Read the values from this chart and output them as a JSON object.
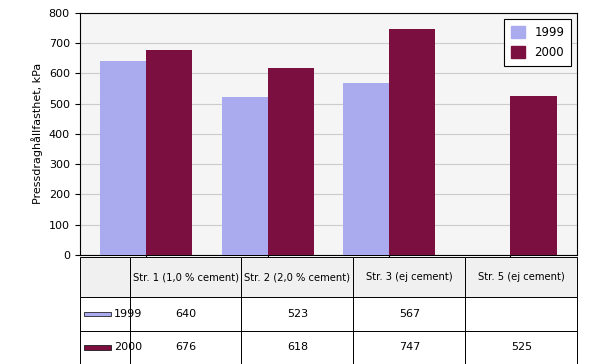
{
  "categories": [
    "Str. 1 (1,0 % cement)",
    "Str. 2 (2,0 % cement)",
    "Str. 3 (ej cement)",
    "Str. 5 (ej cement)"
  ],
  "values_1999": [
    640,
    523,
    567,
    null
  ],
  "values_2000": [
    676,
    618,
    747,
    525
  ],
  "color_1999": "#aaaaee",
  "color_2000": "#7b1040",
  "ylabel": "Pressdraghållfasthet, kPa",
  "ylim": [
    0,
    800
  ],
  "yticks": [
    0,
    100,
    200,
    300,
    400,
    500,
    600,
    700,
    800
  ],
  "table_row1_label": "1999",
  "table_row2_label": "2000",
  "table_row1": [
    "640",
    "523",
    "567",
    ""
  ],
  "table_row2": [
    "676",
    "618",
    "747",
    "525"
  ],
  "bar_width": 0.38,
  "chart_bg": "#f5f5f5",
  "grid_color": "#cccccc"
}
